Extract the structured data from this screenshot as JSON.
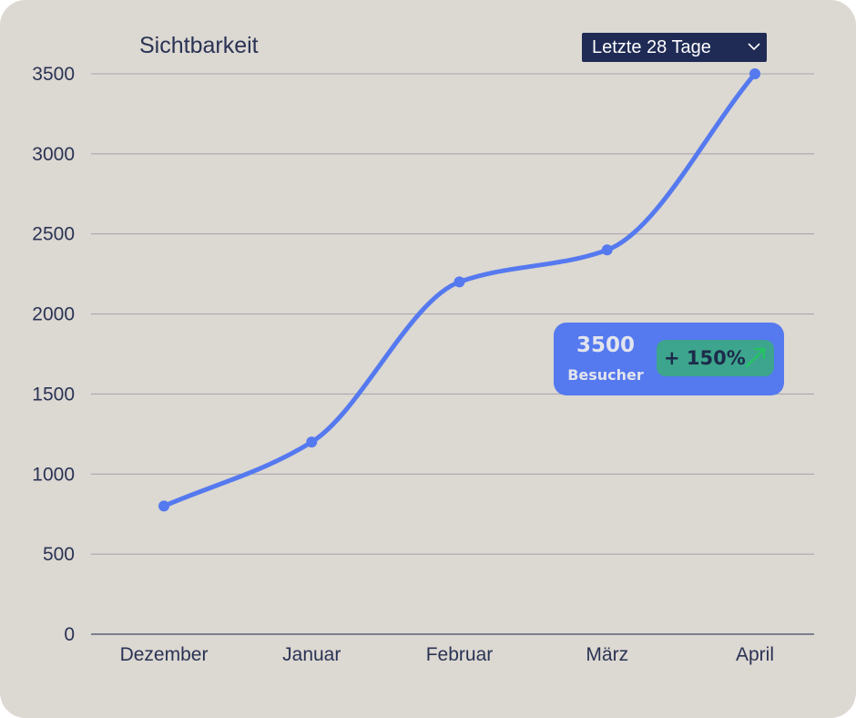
{
  "header": {
    "title": "Sichtbarkeit",
    "range_select": {
      "selected": "Letzte 28 Tage"
    }
  },
  "callout": {
    "value": "3500",
    "label": "Besucher",
    "change": "+ 150%",
    "change_icon": "trend-up-arrow-icon"
  },
  "colors": {
    "card_background": "#dcd8d2",
    "line": "#5579ef",
    "dropdown_background": "#1f2b55",
    "callout_background": "#5579ef",
    "pill_background": "#3da58d",
    "arrow": "#22c55e"
  },
  "chart_data": {
    "type": "line",
    "title": "Sichtbarkeit",
    "categories": [
      "Dezember",
      "Januar",
      "Februar",
      "März",
      "April"
    ],
    "series": [
      {
        "values": [
          800,
          1200,
          2200,
          2400,
          3500
        ]
      }
    ],
    "yticks": [
      "0",
      "500",
      "1000",
      "1500",
      "2000",
      "2500",
      "3000",
      "3500"
    ],
    "ylim": [
      0,
      3500
    ],
    "grid": true,
    "smooth": true,
    "markers": true
  }
}
